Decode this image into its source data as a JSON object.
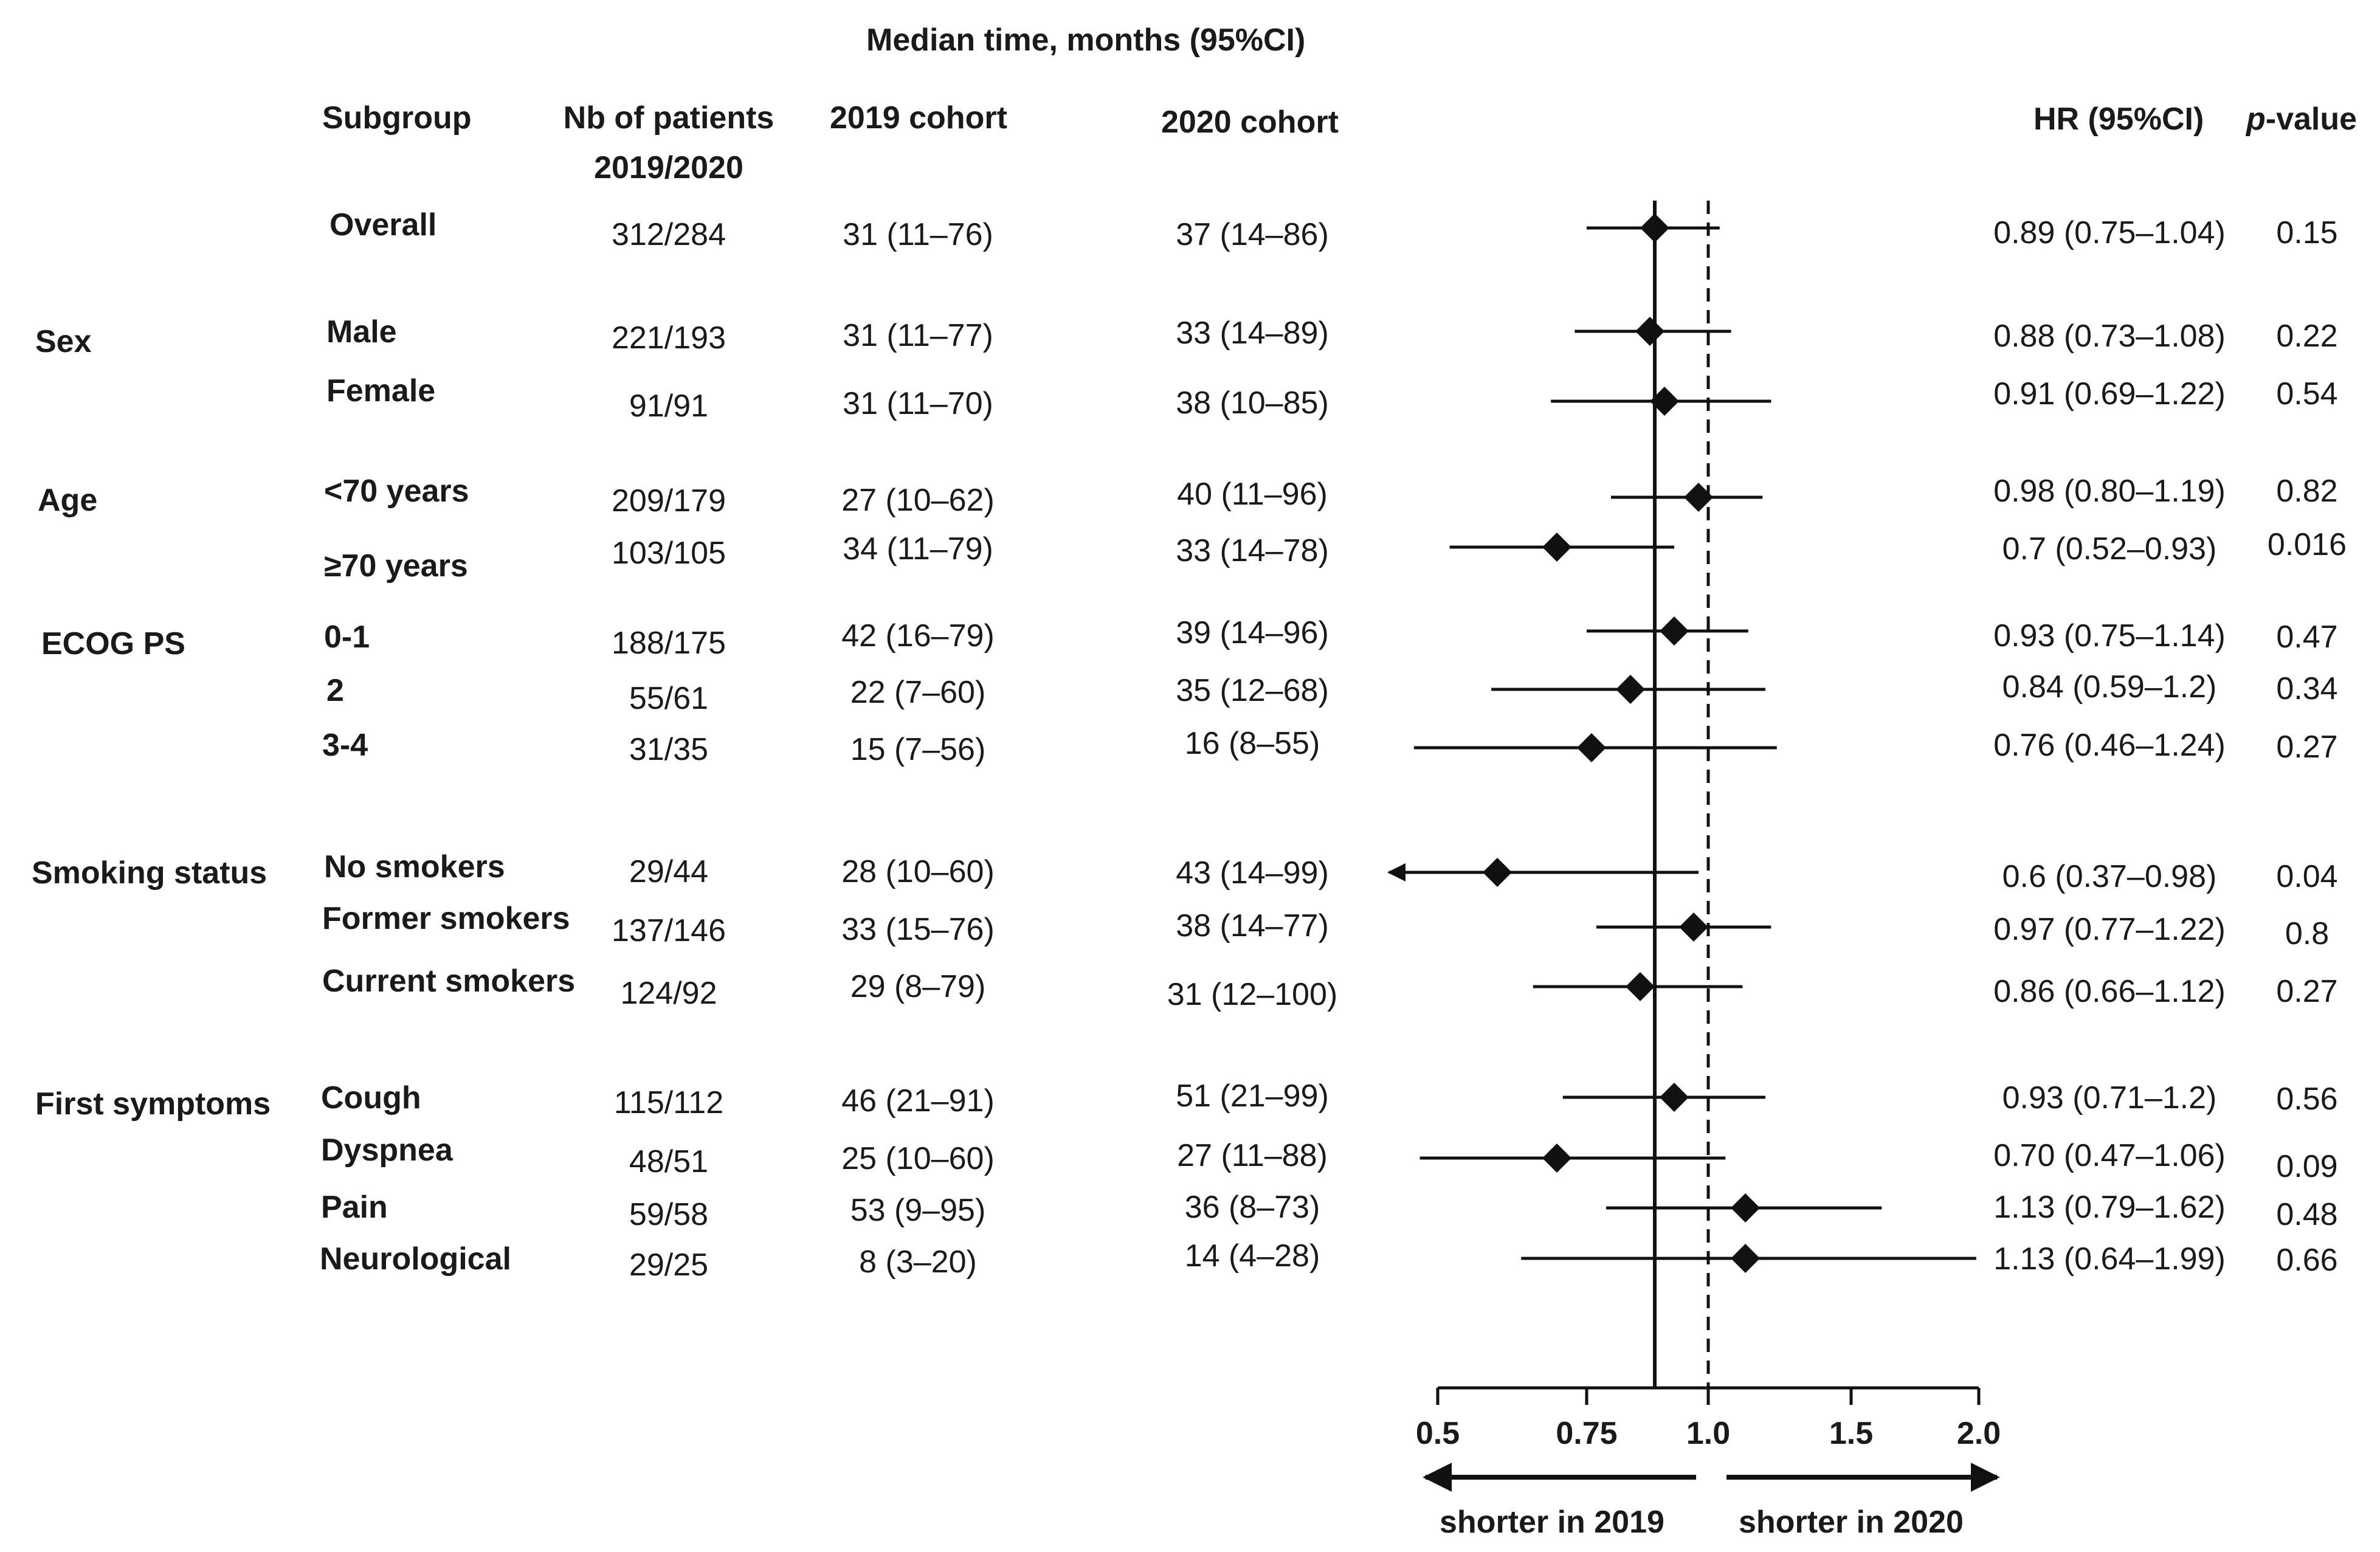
{
  "header": {
    "median_title": "Median time, months (95%CI)",
    "col_subgroup": "Subgroup",
    "col_nb_line1": "Nb of patients",
    "col_nb_line2": "2019/2020",
    "col_2019": "2019 cohort",
    "col_2020": "2020 cohort",
    "col_hr": "HR (95%CI)",
    "col_p_italic": "p",
    "col_p_rest": "-value"
  },
  "categories": [
    {
      "label": "Sex"
    },
    {
      "label": "Age"
    },
    {
      "label": "ECOG PS"
    },
    {
      "label": "Smoking status"
    },
    {
      "label": "First symptoms"
    }
  ],
  "rows": [
    {
      "subgroup": "Overall",
      "nb": "312/284",
      "c2019": "31 (11–76)",
      "c2020": "37 (14–86)",
      "hr": "0.89 (0.75–1.04)",
      "p": "0.15"
    },
    {
      "subgroup": "Male",
      "nb": "221/193",
      "c2019": "31 (11–77)",
      "c2020": "33 (14–89)",
      "hr": "0.88 (0.73–1.08)",
      "p": "0.22"
    },
    {
      "subgroup": "Female",
      "nb": "91/91",
      "c2019": "31 (11–70)",
      "c2020": "38 (10–85)",
      "hr": "0.91 (0.69–1.22)",
      "p": "0.54"
    },
    {
      "subgroup": "<70 years",
      "nb": "209/179",
      "c2019": "27 (10–62)",
      "c2020": "40 (11–96)",
      "hr": "0.98 (0.80–1.19)",
      "p": "0.82"
    },
    {
      "subgroup": "≥70 years",
      "nb": "103/105",
      "c2019": "34 (11–79)",
      "c2020": "33 (14–78)",
      "hr": "0.7 (0.52–0.93)",
      "p": "0.016"
    },
    {
      "subgroup": "0-1",
      "nb": "188/175",
      "c2019": "42 (16–79)",
      "c2020": "39 (14–96)",
      "hr": "0.93 (0.75–1.14)",
      "p": "0.47"
    },
    {
      "subgroup": "2",
      "nb": "55/61",
      "c2019": "22 (7–60)",
      "c2020": "35 (12–68)",
      "hr": "0.84 (0.59–1.2)",
      "p": "0.34"
    },
    {
      "subgroup": "3-4",
      "nb": "31/35",
      "c2019": "15 (7–56)",
      "c2020": "16 (8–55)",
      "hr": "0.76 (0.46–1.24)",
      "p": "0.27"
    },
    {
      "subgroup": "No smokers",
      "nb": "29/44",
      "c2019": "28 (10–60)",
      "c2020": "43 (14–99)",
      "hr": "0.6 (0.37–0.98)",
      "p": "0.04"
    },
    {
      "subgroup": "Former smokers",
      "nb": "137/146",
      "c2019": "33 (15–76)",
      "c2020": "38 (14–77)",
      "hr": "0.97 (0.77–1.22)",
      "p": "0.8"
    },
    {
      "subgroup": "Current  smokers",
      "nb": "124/92",
      "c2019": "29 (8–79)",
      "c2020": "31 (12–100)",
      "hr": "0.86 (0.66–1.12)",
      "p": "0.27"
    },
    {
      "subgroup": "Cough",
      "nb": "115/112",
      "c2019": "46 (21–91)",
      "c2020": "51 (21–99)",
      "hr": "0.93 (0.71–1.2)",
      "p": "0.56"
    },
    {
      "subgroup": "Dyspnea",
      "nb": "48/51",
      "c2019": "25 (10–60)",
      "c2020": "27 (11–88)",
      "hr": "0.70 (0.47–1.06)",
      "p": "0.09"
    },
    {
      "subgroup": "Pain",
      "nb": "59/58",
      "c2019": "53 (9–95)",
      "c2020": "36 (8–73)",
      "hr": "1.13 (0.79–1.62)",
      "p": "0.48"
    },
    {
      "subgroup": "Neurological",
      "nb": "29/25",
      "c2019": "8 (3–20)",
      "c2020": "14 (4–28)",
      "hr": "1.13 (0.64–1.99)",
      "p": "0.66"
    }
  ],
  "axis": {
    "tick_labels": [
      "0.5",
      "0.75",
      "1.0",
      "1.5",
      "2.0"
    ],
    "left_label": "shorter in 2019",
    "right_label": "shorter in 2020"
  },
  "chart_data": {
    "type": "forest",
    "xlabel": "HR (95%CI)",
    "xlim": [
      0.5,
      2.0
    ],
    "xticks": [
      0.5,
      0.75,
      1.0,
      1.5,
      2.0
    ],
    "reference_lines": [
      {
        "x": 0.89,
        "style": "solid",
        "meaning": "overall HR"
      },
      {
        "x": 1.0,
        "style": "dashed",
        "meaning": "no effect"
      }
    ],
    "series": [
      {
        "name": "Overall",
        "hr": 0.89,
        "lo": 0.75,
        "hi": 1.04
      },
      {
        "name": "Male",
        "hr": 0.88,
        "lo": 0.73,
        "hi": 1.08
      },
      {
        "name": "Female",
        "hr": 0.91,
        "lo": 0.69,
        "hi": 1.22
      },
      {
        "name": "<70 years",
        "hr": 0.98,
        "lo": 0.8,
        "hi": 1.19
      },
      {
        "name": "≥70 years",
        "hr": 0.7,
        "lo": 0.52,
        "hi": 0.93
      },
      {
        "name": "0-1",
        "hr": 0.93,
        "lo": 0.75,
        "hi": 1.14
      },
      {
        "name": "2",
        "hr": 0.84,
        "lo": 0.59,
        "hi": 1.2
      },
      {
        "name": "3-4",
        "hr": 0.76,
        "lo": 0.46,
        "hi": 1.24
      },
      {
        "name": "No smokers",
        "hr": 0.6,
        "lo": 0.37,
        "hi": 0.98
      },
      {
        "name": "Former smokers",
        "hr": 0.97,
        "lo": 0.77,
        "hi": 1.22
      },
      {
        "name": "Current  smokers",
        "hr": 0.86,
        "lo": 0.66,
        "hi": 1.12
      },
      {
        "name": "Cough",
        "hr": 0.93,
        "lo": 0.71,
        "hi": 1.2
      },
      {
        "name": "Dyspnea",
        "hr": 0.7,
        "lo": 0.47,
        "hi": 1.06
      },
      {
        "name": "Pain",
        "hr": 1.13,
        "lo": 0.79,
        "hi": 1.62
      },
      {
        "name": "Neurological",
        "hr": 1.13,
        "lo": 0.64,
        "hi": 1.99
      }
    ]
  }
}
